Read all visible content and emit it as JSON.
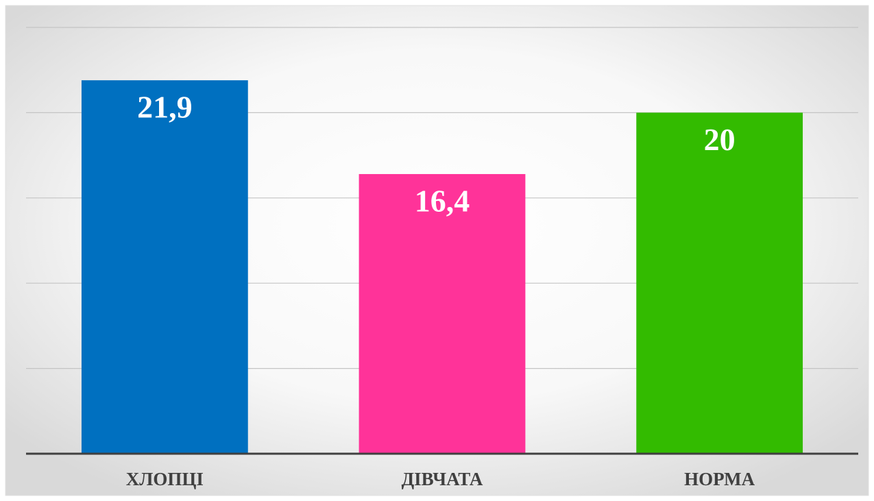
{
  "chart_data": {
    "type": "bar",
    "categories": [
      "ХЛОПЦІ",
      "ДІВЧАТА",
      "НОРМА"
    ],
    "values": [
      21.9,
      16.4,
      20
    ],
    "value_labels": [
      "21,9",
      "16,4",
      "20"
    ],
    "colors": [
      "#0070c0",
      "#ff3399",
      "#33bb00"
    ],
    "ylim": [
      0,
      25
    ],
    "yticks": [
      0,
      5,
      10,
      15,
      20,
      25
    ],
    "grid": true
  }
}
